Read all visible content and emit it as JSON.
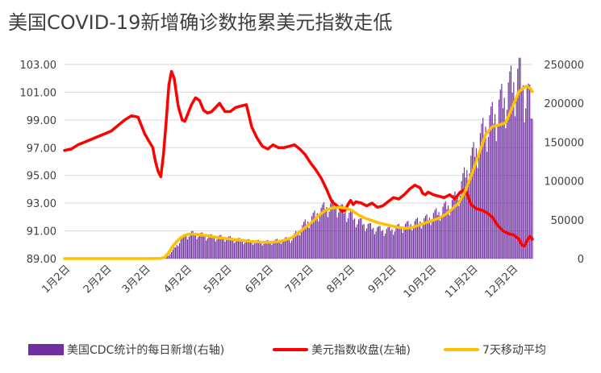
{
  "title": "美国COVID-19新增确诊数拖累美元指数走低",
  "colors": {
    "cases": "#7030A0",
    "dxy": "#FF0000",
    "ma7": "#FFC000",
    "grid": "#D9D9D9"
  },
  "chart_data": {
    "type": "bar+line",
    "left_axis": {
      "label": "美元指数收盘(左轴)",
      "ylim": [
        89.0,
        103.0
      ],
      "ticks": [
        "89.00",
        "91.00",
        "93.00",
        "95.00",
        "97.00",
        "99.00",
        "101.00",
        "103.00"
      ]
    },
    "right_axis": {
      "label": "美国CDC统计的每日新增(右轴)",
      "ylim": [
        0,
        250000
      ],
      "ticks": [
        "0",
        "50000",
        "100000",
        "150000",
        "200000",
        "250000"
      ]
    },
    "x_ticks": [
      "1月2日",
      "2月2日",
      "3月2日",
      "4月2日",
      "5月2日",
      "6月2日",
      "7月2日",
      "8月2日",
      "9月2日",
      "10月2日",
      "11月2日",
      "12月2日"
    ],
    "x_tick_days": [
      0,
      31,
      60,
      91,
      121,
      152,
      182,
      213,
      244,
      274,
      305,
      335
    ],
    "x_range_days": [
      0,
      350
    ],
    "grid": true,
    "legend_position": "bottom",
    "series": [
      {
        "name": "美国CDC统计的每日新增(右轴)",
        "kind": "bar",
        "axis": "right",
        "x_days": [
          0,
          60,
          75,
          80,
          85,
          90,
          95,
          100,
          110,
          120,
          130,
          140,
          150,
          160,
          170,
          180,
          185,
          190,
          195,
          200,
          205,
          210,
          215,
          220,
          225,
          230,
          240,
          250,
          260,
          270,
          280,
          290,
          295,
          300,
          305,
          310,
          315,
          320,
          325,
          330,
          335,
          340,
          345,
          348,
          350
        ],
        "values": [
          0,
          0,
          500,
          8000,
          20000,
          30000,
          32000,
          31000,
          28000,
          27000,
          24000,
          22000,
          21000,
          23000,
          26000,
          45000,
          52000,
          60000,
          66000,
          68000,
          66000,
          60000,
          54000,
          48000,
          44000,
          40000,
          36000,
          40000,
          45000,
          50000,
          60000,
          72000,
          85000,
          110000,
          130000,
          150000,
          170000,
          180000,
          195000,
          210000,
          225000,
          235000,
          215000,
          200000,
          180000
        ]
      },
      {
        "name": "美元指数收盘(左轴)",
        "kind": "line",
        "axis": "left",
        "x_days": [
          0,
          5,
          10,
          15,
          20,
          25,
          30,
          35,
          40,
          45,
          50,
          55,
          60,
          63,
          66,
          68,
          70,
          72,
          74,
          76,
          78,
          80,
          82,
          85,
          88,
          90,
          92,
          95,
          98,
          101,
          104,
          107,
          110,
          113,
          116,
          120,
          124,
          128,
          132,
          136,
          140,
          144,
          148,
          152,
          156,
          160,
          164,
          168,
          172,
          176,
          180,
          184,
          188,
          192,
          196,
          200,
          204,
          206,
          208,
          210,
          212,
          214,
          216,
          218,
          222,
          226,
          230,
          234,
          238,
          242,
          246,
          250,
          254,
          258,
          262,
          266,
          268,
          270,
          272,
          276,
          280,
          284,
          288,
          292,
          296,
          300,
          304,
          308,
          312,
          316,
          320,
          324,
          328,
          332,
          336,
          340,
          342,
          344,
          346,
          348,
          350
        ],
        "values": [
          96.8,
          96.9,
          97.2,
          97.4,
          97.6,
          97.8,
          98.0,
          98.2,
          98.6,
          99.0,
          99.3,
          99.2,
          98.0,
          97.5,
          97.0,
          96.0,
          95.3,
          94.9,
          96.5,
          98.8,
          101.5,
          102.5,
          102.0,
          100.0,
          99.0,
          98.9,
          99.4,
          100.1,
          100.6,
          100.4,
          99.7,
          99.5,
          99.6,
          99.9,
          100.2,
          99.6,
          99.6,
          99.9,
          100.0,
          100.1,
          98.5,
          97.7,
          97.1,
          96.9,
          97.2,
          97.0,
          97.0,
          97.1,
          97.2,
          96.9,
          96.5,
          95.9,
          95.4,
          94.8,
          94.0,
          93.1,
          92.8,
          92.6,
          92.4,
          92.5,
          92.9,
          93.2,
          92.9,
          93.1,
          93.0,
          92.8,
          93.0,
          92.7,
          92.8,
          93.1,
          93.4,
          93.3,
          93.6,
          94.0,
          94.3,
          94.1,
          93.7,
          93.6,
          93.8,
          93.6,
          93.5,
          93.4,
          93.6,
          93.3,
          93.8,
          94.0,
          92.9,
          92.6,
          92.5,
          92.3,
          92.0,
          91.4,
          91.0,
          90.8,
          90.7,
          90.4,
          90.0,
          89.9,
          90.3,
          90.6,
          90.4
        ]
      },
      {
        "name": "7天移动平均",
        "kind": "line",
        "axis": "right",
        "x_days": [
          0,
          20,
          40,
          60,
          72,
          75,
          78,
          81,
          84,
          87,
          90,
          93,
          96,
          100,
          105,
          110,
          115,
          120,
          125,
          130,
          135,
          140,
          145,
          150,
          155,
          160,
          165,
          170,
          175,
          180,
          185,
          190,
          195,
          200,
          205,
          210,
          215,
          220,
          225,
          230,
          235,
          240,
          245,
          250,
          255,
          260,
          265,
          270,
          275,
          280,
          285,
          290,
          295,
          300,
          305,
          310,
          315,
          320,
          325,
          330,
          335,
          340,
          345,
          348,
          350
        ],
        "values": [
          0,
          0,
          0,
          0,
          200,
          2000,
          8000,
          16000,
          22000,
          27000,
          30000,
          31500,
          31500,
          31000,
          30000,
          28500,
          27000,
          26000,
          25000,
          24000,
          23000,
          22000,
          21500,
          21000,
          21000,
          22000,
          24000,
          27000,
          33000,
          40000,
          47000,
          55000,
          62000,
          65000,
          66000,
          65000,
          62000,
          56000,
          52000,
          49000,
          46000,
          44000,
          42000,
          40000,
          39000,
          40000,
          43000,
          46000,
          49000,
          52000,
          57000,
          64000,
          72000,
          88000,
          110000,
          135000,
          160000,
          170000,
          172000,
          175000,
          195000,
          215000,
          222000,
          220000,
          215000
        ]
      }
    ]
  },
  "legend": {
    "cases_label": "美国CDC统计的每日新增(右轴)",
    "dxy_label": "美元指数收盘(左轴)",
    "ma7_label": "7天移动平均"
  }
}
